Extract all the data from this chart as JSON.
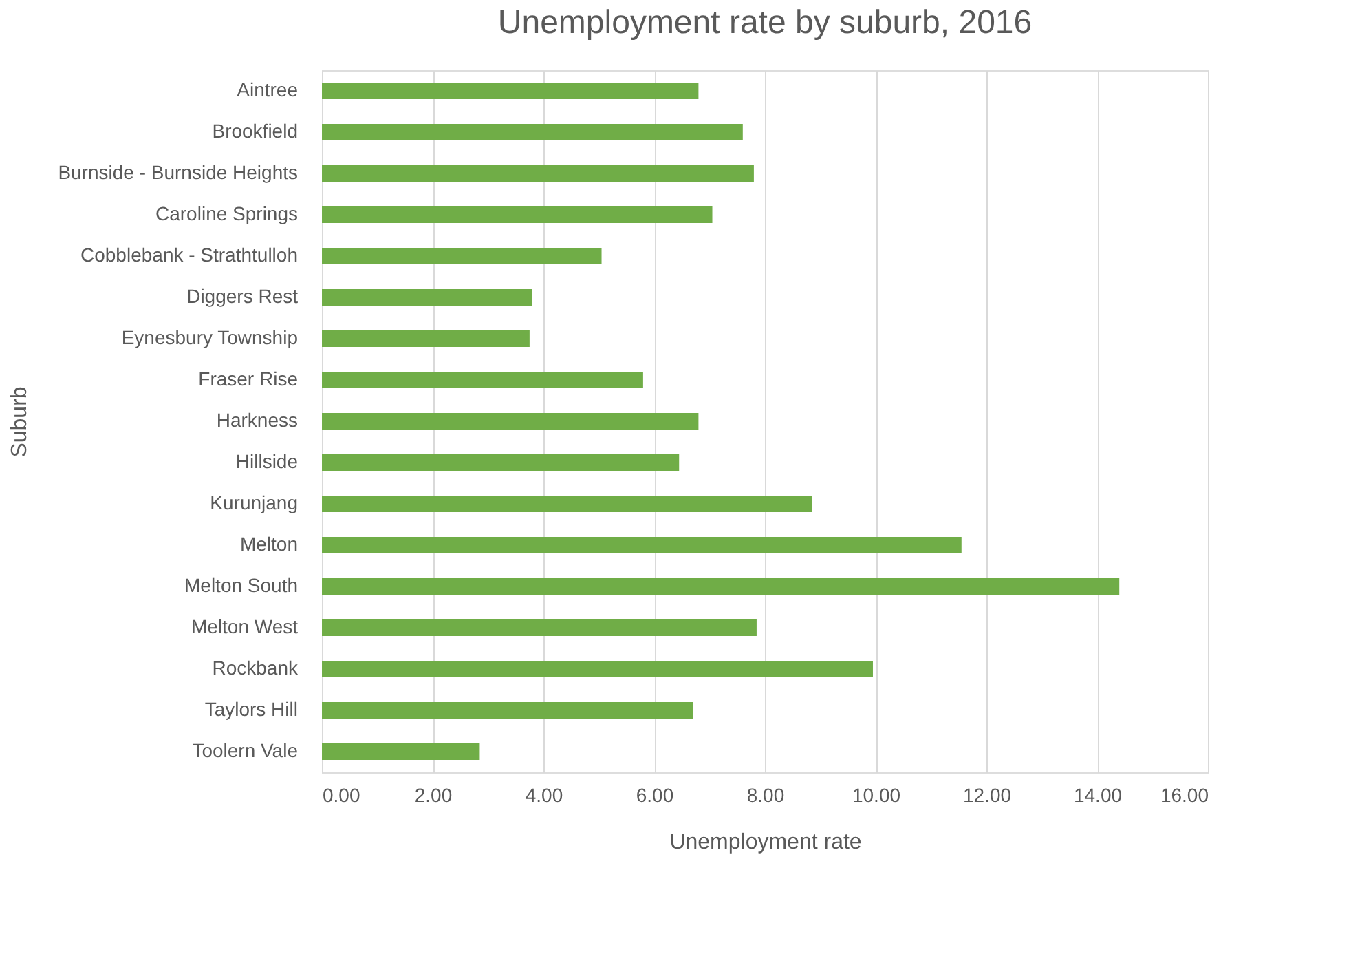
{
  "chart_data": {
    "type": "bar",
    "orientation": "horizontal",
    "title": "Unemployment rate by suburb, 2016",
    "xlabel": "Unemployment rate",
    "ylabel": "Suburb",
    "categories": [
      "Aintree",
      "Brookfield",
      "Burnside - Burnside Heights",
      "Caroline Springs",
      "Cobblebank - Strathtulloh",
      "Diggers Rest",
      "Eynesbury Township",
      "Fraser Rise",
      "Harkness",
      "Hillside",
      "Kurunjang",
      "Melton",
      "Melton South",
      "Melton West",
      "Rockbank",
      "Taylors Hill",
      "Toolern Vale"
    ],
    "values": [
      6.8,
      7.6,
      7.8,
      7.05,
      5.05,
      3.8,
      3.75,
      5.8,
      6.8,
      6.45,
      8.85,
      11.55,
      14.4,
      7.85,
      9.95,
      6.7,
      2.85
    ],
    "color": "#70ad47",
    "xlim": [
      0,
      16
    ],
    "xticks": [
      {
        "value": 0,
        "label": "0.00"
      },
      {
        "value": 2,
        "label": "2.00"
      },
      {
        "value": 4,
        "label": "4.00"
      },
      {
        "value": 6,
        "label": "6.00"
      },
      {
        "value": 8,
        "label": "8.00"
      },
      {
        "value": 10,
        "label": "10.00"
      },
      {
        "value": 12,
        "label": "12.00"
      },
      {
        "value": 14,
        "label": "14.00"
      },
      {
        "value": 16,
        "label": "16.00"
      }
    ],
    "grid": "x"
  }
}
